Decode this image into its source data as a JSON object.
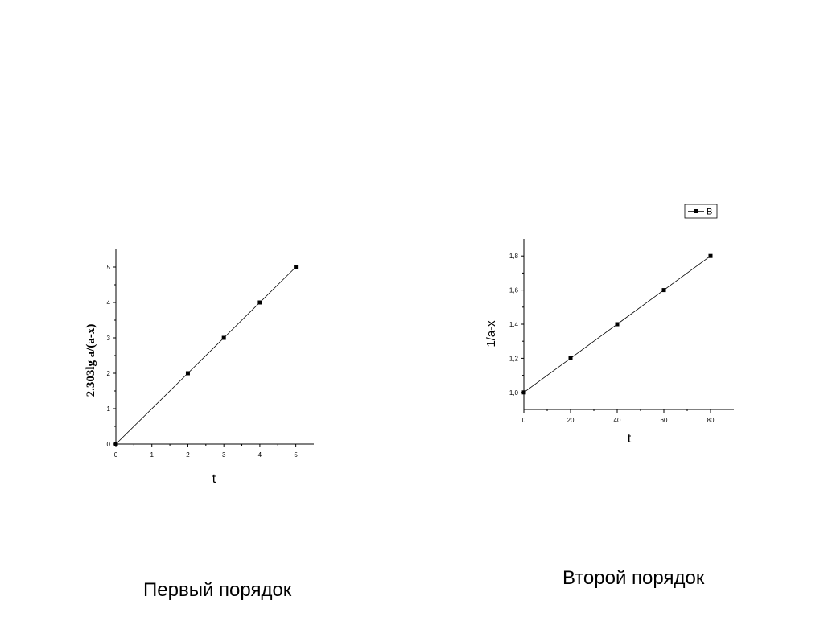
{
  "chart_data": [
    {
      "type": "line",
      "xlabel": "t",
      "ylabel": "2.303lg a/(a-x)",
      "xlim": [
        0,
        5.5
      ],
      "ylim": [
        0,
        5.5
      ],
      "x_ticks": [
        "0",
        "1",
        "2",
        "3",
        "4",
        "5"
      ],
      "y_ticks": [
        "0",
        "1",
        "2",
        "3",
        "4",
        "5"
      ],
      "series": [
        {
          "x": [
            0,
            2,
            3,
            4,
            5
          ],
          "values": [
            0,
            2,
            3,
            4,
            5
          ]
        }
      ],
      "marker": "square",
      "color": "#000000",
      "grid": false
    },
    {
      "type": "line",
      "xlabel": "t",
      "ylabel": "1/a-x",
      "xlim": [
        0,
        90
      ],
      "ylim": [
        0.9,
        1.9
      ],
      "x_ticks": [
        "0",
        "20",
        "40",
        "60",
        "80"
      ],
      "y_ticks": [
        "1,0",
        "1,2",
        "1,4",
        "1,6",
        "1,8"
      ],
      "series": [
        {
          "name": "B",
          "x": [
            0,
            20,
            40,
            60,
            80
          ],
          "values": [
            1.0,
            1.2,
            1.4,
            1.6,
            1.8
          ]
        }
      ],
      "legend": "top-right",
      "marker": "square",
      "color": "#000000",
      "grid": false
    }
  ],
  "captions": {
    "first": "Первый порядок",
    "second": "Второй порядок"
  }
}
